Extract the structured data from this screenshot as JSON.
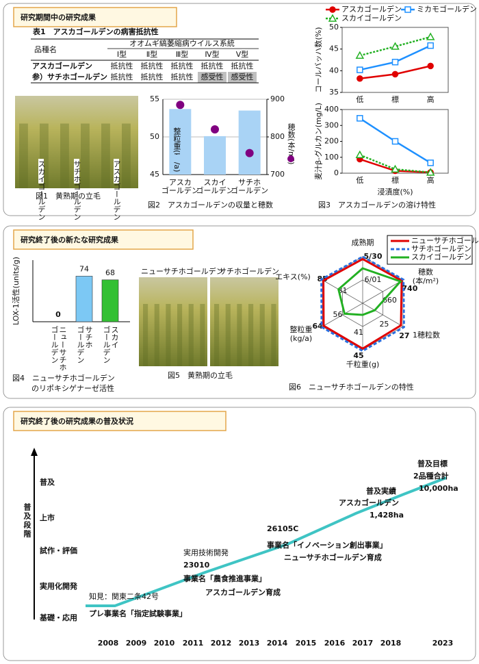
{
  "panels": [
    {
      "title": "研究期間中の研究成果"
    },
    {
      "title": "研究終了後の新たな研究成果"
    },
    {
      "title": "研究終了後の研究成果の普及状況"
    }
  ],
  "table1": {
    "title": "表1　アスカゴールデンの病害抵抗性",
    "header": {
      "variety": "品種名",
      "group": "オオムギ縞萎縮病ウイルス系統",
      "types": [
        "Ⅰ型",
        "Ⅱ型",
        "Ⅲ型",
        "Ⅳ型",
        "Ⅴ型"
      ]
    },
    "rows": [
      [
        "アスカゴールデン",
        "抵抗性",
        "抵抗性",
        "抵抗性",
        "抵抗性",
        "抵抗性"
      ],
      [
        "参）サチホゴールデン",
        "抵抗性",
        "抵抗性",
        "抵抗性",
        "感受性",
        "感受性"
      ]
    ],
    "shade": "#bfbfbf"
  },
  "figure1": {
    "caption": "図1　黄熟期の立毛",
    "photo_labels": [
      "スカイゴールデン",
      "サチホゴールデン",
      "アスカゴールデン"
    ]
  },
  "figure5": {
    "caption": "図5　黄熟期の立毛",
    "photo_labels": [
      "ニューサチホゴールデン",
      "サチホゴールデン"
    ]
  },
  "chart_data": [
    {
      "type": "combo",
      "caption": "図2　アスカゴールデンの収量と穂数",
      "categories": [
        [
          "アスカ",
          "ゴールデン"
        ],
        [
          "スカイ",
          "ゴールデン"
        ],
        [
          "サチホ",
          "ゴールデン"
        ]
      ],
      "series": [
        {
          "name": "整粒重(kg/a)",
          "kind": "bar",
          "color": "#a9d3f5",
          "values": [
            53.7,
            50.1,
            53.5
          ]
        },
        {
          "name": "穂数(本/m²)",
          "kind": "scatter",
          "axis": "y2",
          "color": "#800080",
          "values": [
            885,
            820,
            757
          ]
        }
      ],
      "ylim": [
        45,
        55
      ],
      "yticks": [
        45,
        50,
        55
      ],
      "y2lim": [
        700,
        900
      ],
      "y2ticks": [
        700,
        800,
        900
      ],
      "grid": true
    },
    {
      "type": "line",
      "caption": "図3　アスカゴールデンの溶け特性",
      "categories": [
        "低",
        "標",
        "高"
      ],
      "xlabel": "浸漬度(%)",
      "series": [
        {
          "name": "アスカゴールデン",
          "color": "#e00000",
          "marker": "circle"
        },
        {
          "name": "ミカモゴールデン",
          "color": "#1e90ff",
          "marker": "square"
        },
        {
          "name": "スカイゴールデン",
          "color": "#22b022",
          "marker": "triangle",
          "dash": true
        }
      ],
      "panels": [
        {
          "ylabel": "コールバッハ数(%)",
          "ylim": [
            35,
            50
          ],
          "yticks": [
            35,
            40,
            45,
            50
          ],
          "series": [
            {
              "values": [
                38.2,
                39.2,
                41.1
              ]
            },
            {
              "values": [
                40.2,
                42,
                45.8
              ]
            },
            {
              "values": [
                43.5,
                45.6,
                47.8
              ]
            }
          ]
        },
        {
          "ylabel": "麦汁β-グルカン(mg/L)",
          "ylim": [
            0,
            400
          ],
          "yticks": [
            0,
            100,
            200,
            300,
            400
          ],
          "series": [
            {
              "values": [
                88,
                15,
                5
              ]
            },
            {
              "values": [
                345,
                200,
                65
              ]
            },
            {
              "values": [
                115,
                25,
                5
              ]
            }
          ]
        }
      ]
    },
    {
      "type": "bar",
      "caption": [
        "図4　ニューサチホゴールデン",
        "のリポキシゲナーゼ活性"
      ],
      "ylabel": "LOX-1活性(units/g)",
      "categories": [
        [
          "ニューサチホ",
          "ゴールデン"
        ],
        [
          "サチホ",
          "ゴールデン"
        ],
        [
          "スカイ",
          "ゴールデン"
        ]
      ],
      "values": [
        0,
        74,
        68
      ],
      "colors": [
        "#ff0000",
        "#7cc8f4",
        "#33c033"
      ],
      "ylim": [
        0,
        100
      ]
    },
    {
      "type": "radar",
      "caption": "図6　ニューサチホゴールデンの特性",
      "axes": [
        {
          "label": [
            "成熟期"
          ],
          "lim": [
            154,
            150
          ],
          "ticks": [
            {
              "value": 152,
              "label": "6/01"
            },
            {
              "value": 150,
              "label": "5/30"
            }
          ]
        },
        {
          "label": [
            "穂数",
            "(本/m²)"
          ],
          "lim": [
            580,
            740
          ],
          "ticks": [
            660,
            740
          ]
        },
        {
          "label": [
            "1穂粒数"
          ],
          "lim": [
            23,
            27
          ],
          "ticks": [
            25,
            27
          ]
        },
        {
          "label": [
            "千粒重(g)"
          ],
          "lim": [
            37,
            45
          ],
          "ticks": [
            41,
            45
          ]
        },
        {
          "label": [
            "整粒重",
            "(kg/a)"
          ],
          "lim": [
            48,
            64
          ],
          "ticks": [
            56,
            64
          ]
        },
        {
          "label": [
            "エキス(%)"
          ],
          "lim": [
            77,
            85
          ],
          "ticks": [
            81,
            85
          ]
        }
      ],
      "series": [
        {
          "name": "ニューサチホゴールデン",
          "color": "#e00000",
          "values": [
            150.2,
            735,
            26.8,
            44.8,
            63.5,
            84.8
          ]
        },
        {
          "name": "サチホゴールデン",
          "color": "#2a6fe0",
          "dash": true,
          "values": [
            150,
            742,
            27.1,
            45.2,
            64.3,
            85.2
          ]
        },
        {
          "name": "スカイゴールデン",
          "color": "#22b022",
          "values": [
            151,
            730,
            24.2,
            39,
            55.2,
            81.8
          ]
        }
      ]
    }
  ],
  "timeline": {
    "axis_label": "普及段階",
    "stages": [
      "普及",
      "上市",
      "試作・評価",
      "実用化開発",
      "基礎・応用"
    ],
    "years": [
      2008,
      2009,
      2010,
      2011,
      2012,
      2013,
      2014,
      2015,
      2016,
      2017,
      2018,
      2023
    ],
    "notes": [
      "知見：関東二条42号",
      "プレ事業名「指定試験事業」",
      "実用技術開発",
      "23010",
      "事業名「農食推進事業」",
      "アスカゴールデン育成",
      "26105C",
      "事業名「イノベーション創出事業」",
      "ニューサチホゴールデン育成",
      "普及実績",
      "アスカゴールデン",
      "1,428ha",
      "普及目標",
      "2品種合計",
      "10,000ha"
    ]
  }
}
